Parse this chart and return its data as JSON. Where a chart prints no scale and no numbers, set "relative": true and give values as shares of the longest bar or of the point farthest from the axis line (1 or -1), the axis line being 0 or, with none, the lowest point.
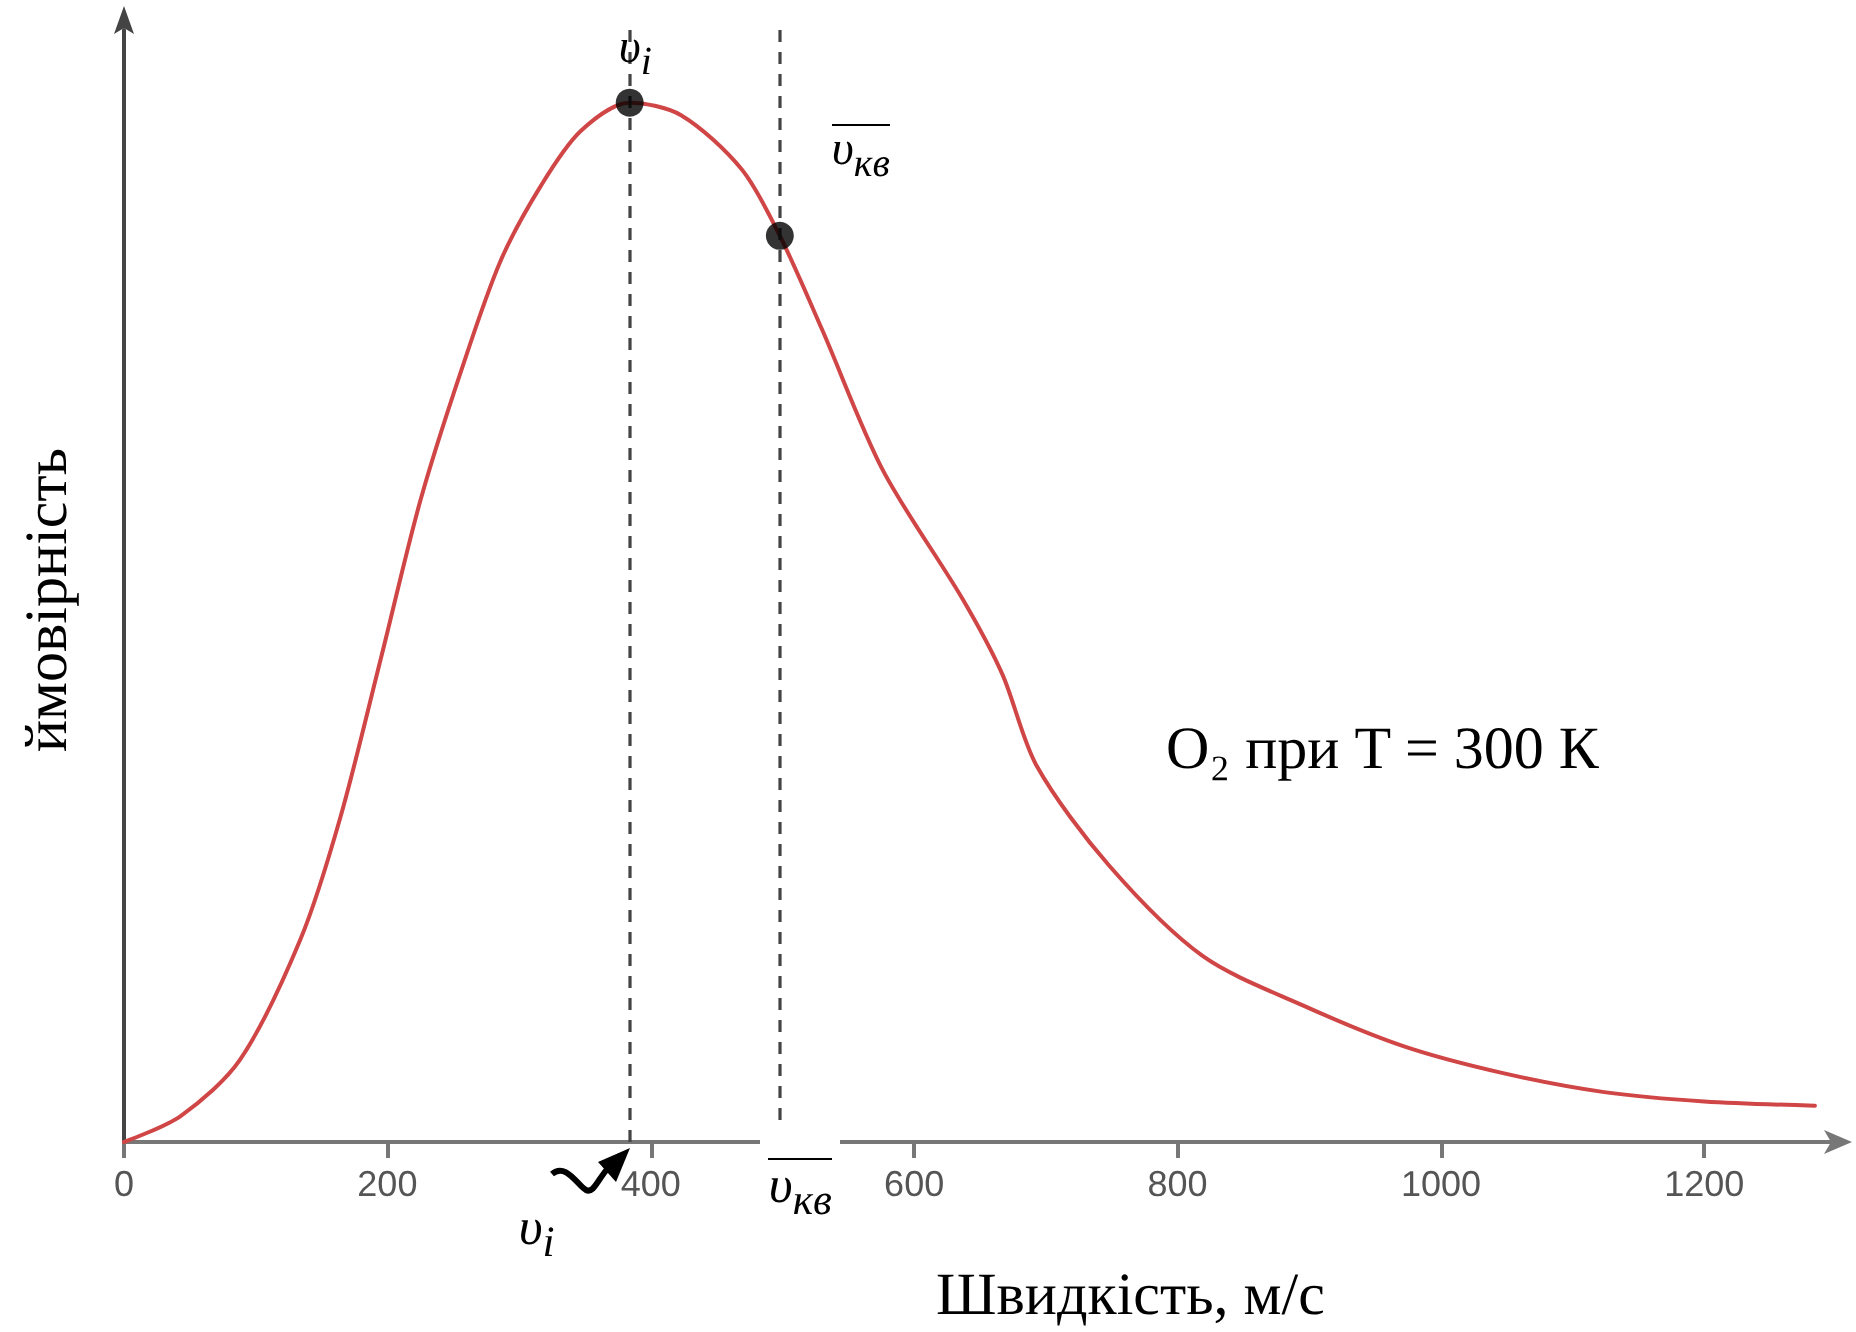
{
  "chart_data": {
    "type": "line",
    "relative": true,
    "xlabel": "Швидкість, м/с",
    "ylabel": "ймовірність",
    "xlim": [
      0,
      1300
    ],
    "xticks": [
      0,
      200,
      400,
      600,
      800,
      1000,
      1200
    ],
    "marker": "none",
    "line_style": "solid",
    "grid": false,
    "series": [
      {
        "color": "#d04545",
        "x": [
          0,
          43,
          88,
          134,
          164,
          195,
          225,
          256,
          286,
          317,
          347,
          384,
          423,
          469,
          498,
          530,
          576,
          637,
          667,
          693,
          748,
          819,
          896,
          972,
          1048,
          1124,
          1200,
          1284
        ],
        "values": [
          0,
          0.025,
          0.079,
          0.195,
          0.311,
          0.465,
          0.617,
          0.742,
          0.848,
          0.921,
          0.973,
          1,
          0.988,
          0.936,
          0.872,
          0.782,
          0.647,
          0.522,
          0.45,
          0.362,
          0.266,
          0.179,
          0.131,
          0.092,
          0.066,
          0.048,
          0.039,
          0.035
        ]
      },
      {
        "type": "scatter",
        "color": "#000000",
        "marker": "circle",
        "x": [
          384,
          498
        ],
        "values": [
          1,
          0.872
        ]
      }
    ],
    "ref_lines": [
      {
        "axis": "x",
        "value": 384,
        "label": "υ$_{i}$",
        "color": "#444444",
        "line_style": "dashed"
      },
      {
        "axis": "x",
        "value": 498,
        "label": "υ$_{кв}$",
        "color": "#444444",
        "line_style": "dashed"
      }
    ],
    "annotations": [
      {
        "text": "υ$_{i}$",
        "x": 384,
        "y": 1
      },
      {
        "text": "υ$_{кв}$",
        "x": 498,
        "y": 0.872
      },
      "O₂ при T = 300 К"
    ]
  }
}
